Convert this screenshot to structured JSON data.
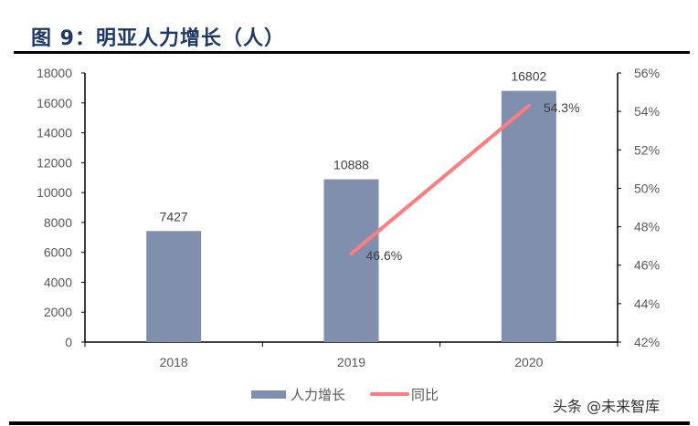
{
  "title": "图 9：明亚人力增长（人）",
  "watermark": "头条 @未来智库",
  "colors": {
    "bar": "#7f8fad",
    "line": "#ff7c80",
    "title": "#1f3864",
    "axis": "#000000",
    "tick_text": "#595959"
  },
  "chart_data": {
    "type": "bar",
    "title": "图 9：明亚人力增长（人）",
    "categories": [
      "2018",
      "2019",
      "2020"
    ],
    "series": [
      {
        "name": "人力增长",
        "type": "bar",
        "axis": "left",
        "values": [
          7427,
          10888,
          16802
        ],
        "labels": [
          "7427",
          "10888",
          "16802"
        ],
        "color": "#7f8fad"
      },
      {
        "name": "同比",
        "type": "line",
        "axis": "right",
        "values": [
          null,
          46.6,
          54.3
        ],
        "labels": [
          "",
          "46.6%",
          "54.3%"
        ],
        "color": "#ff7c80"
      }
    ],
    "xlabel": "",
    "ylabel": "",
    "ylim": [
      0,
      18000
    ],
    "yticks": [
      "0",
      "2000",
      "4000",
      "6000",
      "8000",
      "10000",
      "12000",
      "14000",
      "16000",
      "18000"
    ],
    "y2lim": [
      42,
      56
    ],
    "y2ticks": [
      "42%",
      "44%",
      "46%",
      "48%",
      "50%",
      "52%",
      "54%",
      "56%"
    ],
    "grid": false,
    "legend_position": "bottom"
  },
  "legend": {
    "bar_label": "人力增长",
    "line_label": "同比"
  }
}
